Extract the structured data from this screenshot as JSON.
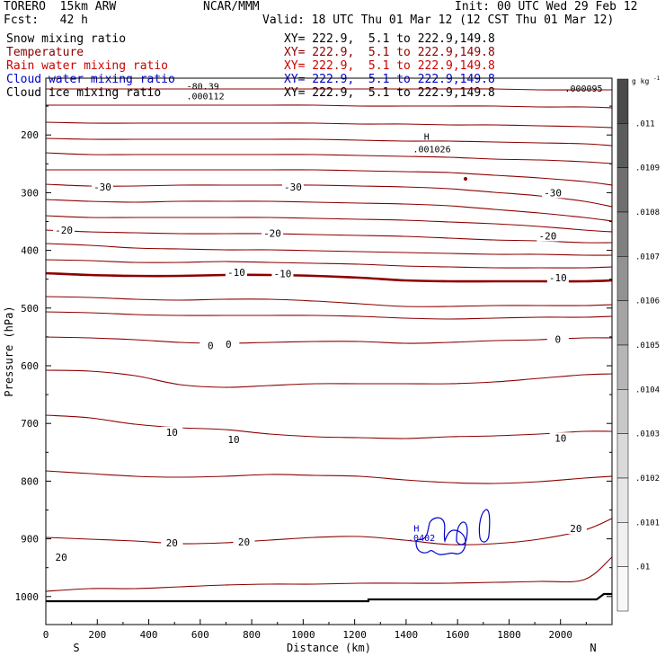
{
  "header": {
    "model": "TORERO  15km ARW",
    "org": "NCAR/MMM",
    "init": "Init: 00 UTC Wed 29 Feb 12",
    "fcst": "Fcst:   42 h",
    "valid": "Valid: 18 UTC Thu 01 Mar 12 (12 CST Thu 01 Mar 12)"
  },
  "fields": [
    {
      "name": "Snow mixing ratio",
      "xy": "XY= 222.9,  5.1 to 222.9,149.8",
      "color": "#000000"
    },
    {
      "name": "Temperature",
      "xy": "XY= 222.9,  5.1 to 222.9,149.8",
      "color": "#8b0000"
    },
    {
      "name": "Rain water mixing ratio",
      "xy": "XY= 222.9,  5.1 to 222.9,149.8",
      "color": "#cc0000"
    },
    {
      "name": "Cloud water mixing ratio",
      "xy": "XY= 222.9,  5.1 to 222.9,149.8",
      "color": "#0000cc"
    },
    {
      "name": "Cloud ice mixing ratio",
      "xy": "XY= 222.9,  5.1 to 222.9,149.8",
      "color": "#000000"
    }
  ],
  "chart_data": {
    "type": "contour cross-section",
    "xlabel": "Distance (km)",
    "ylabel": "Pressure (hPa)",
    "xlim": [
      0,
      2200
    ],
    "ylim": [
      1050,
      100
    ],
    "x_ticks": [
      "0",
      "200",
      "400",
      "600",
      "800",
      "1000",
      "1200",
      "1400",
      "1600",
      "1800",
      "2000"
    ],
    "y_ticks": [
      "200",
      "300",
      "400",
      "500",
      "600",
      "700",
      "800",
      "900",
      "1000"
    ],
    "left_end": "S",
    "right_end": "N",
    "temperature_contours": {
      "interval_C": 5,
      "color": "#8b0000",
      "zero_line_pressure_hPa": 555,
      "labels": [
        {
          "text": "-30",
          "x_km": 220,
          "p_hPa": 290
        },
        {
          "text": "-30",
          "x_km": 960,
          "p_hPa": 290
        },
        {
          "text": "-30",
          "x_km": 1970,
          "p_hPa": 300
        },
        {
          "text": "-20",
          "x_km": 70,
          "p_hPa": 365
        },
        {
          "text": "-20",
          "x_km": 880,
          "p_hPa": 370
        },
        {
          "text": "-20",
          "x_km": 1950,
          "p_hPa": 375
        },
        {
          "text": "-10",
          "x_km": 740,
          "p_hPa": 438
        },
        {
          "text": "-10",
          "x_km": 920,
          "p_hPa": 440
        },
        {
          "text": "-10",
          "x_km": 1990,
          "p_hPa": 447
        },
        {
          "text": "0",
          "x_km": 640,
          "p_hPa": 565
        },
        {
          "text": "0",
          "x_km": 710,
          "p_hPa": 563
        },
        {
          "text": "0",
          "x_km": 1990,
          "p_hPa": 554
        },
        {
          "text": "10",
          "x_km": 490,
          "p_hPa": 715
        },
        {
          "text": "10",
          "x_km": 730,
          "p_hPa": 728
        },
        {
          "text": "10",
          "x_km": 2000,
          "p_hPa": 725
        },
        {
          "text": "20",
          "x_km": 490,
          "p_hPa": 907
        },
        {
          "text": "20",
          "x_km": 770,
          "p_hPa": 905
        },
        {
          "text": "20",
          "x_km": 2060,
          "p_hPa": 882
        },
        {
          "text": "20",
          "x_km": 60,
          "p_hPa": 932
        }
      ]
    },
    "annotations": [
      {
        "text": "-80.39",
        "x_km": 610,
        "p_hPa": 121,
        "color": "#000000"
      },
      {
        "text": ".000112",
        "x_km": 620,
        "p_hPa": 138,
        "color": "#000000"
      },
      {
        "text": ".000095",
        "x_km": 2090,
        "p_hPa": 125,
        "color": "#000000"
      },
      {
        "text": "H",
        "x_km": 1480,
        "p_hPa": 208,
        "color": "#000000"
      },
      {
        "text": ".001026",
        "x_km": 1500,
        "p_hPa": 230,
        "color": "#000000"
      },
      {
        "text": "H",
        "x_km": 1440,
        "p_hPa": 887,
        "color": "#0000cc"
      },
      {
        "text": ".0402",
        "x_km": 1460,
        "p_hPa": 904,
        "color": "#0000cc"
      }
    ],
    "colorbar": {
      "unit": "g kg",
      "unit_exp": "-1",
      "labels": [
        ".011",
        ".0109",
        ".0108",
        ".0107",
        ".0106",
        ".0105",
        ".0104",
        ".0103",
        ".0102",
        ".0101",
        ".01"
      ],
      "colors": [
        "#4a4a4a",
        "#5c5c5c",
        "#6e6e6e",
        "#808080",
        "#929292",
        "#a4a4a4",
        "#b6b6b6",
        "#c8c8c8",
        "#dadada",
        "#e6e6e6",
        "#f0f0f0",
        "#f8f8f8"
      ]
    }
  }
}
